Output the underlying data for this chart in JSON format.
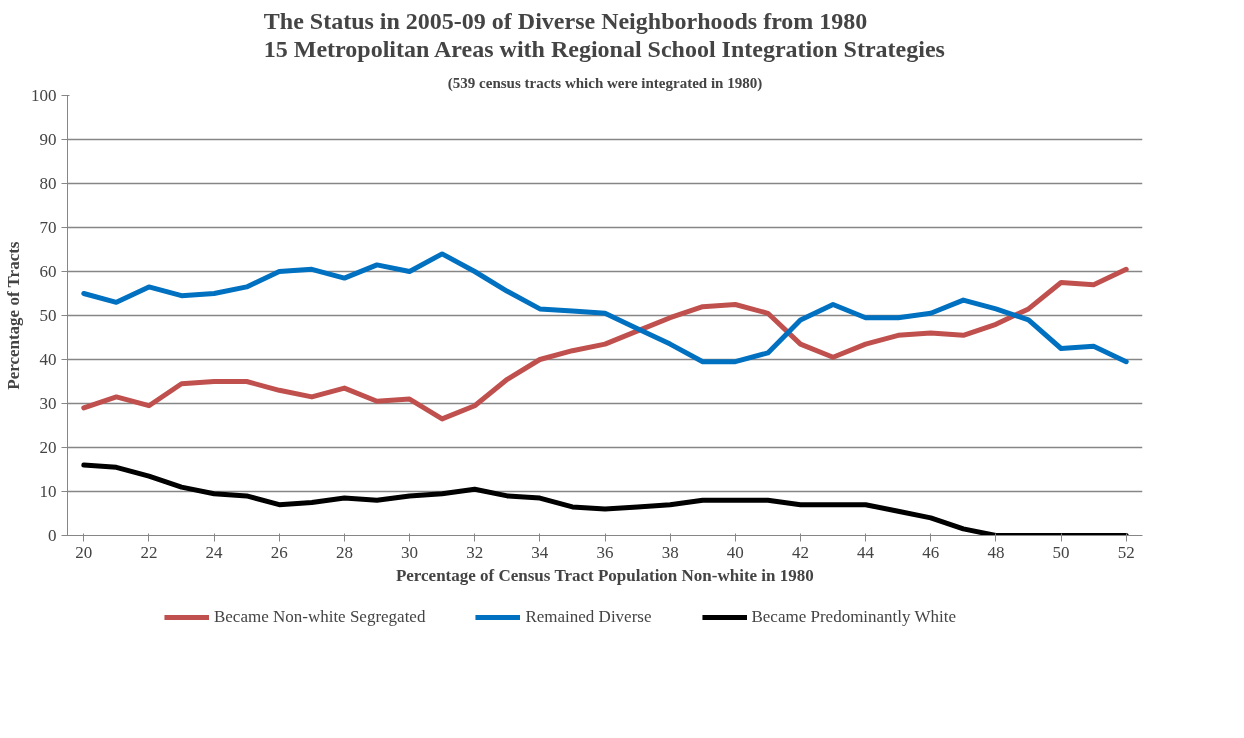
{
  "chart_data": {
    "type": "line",
    "title": "The Status in 2005-09 of Diverse Neighborhoods from 1980\n15 Metropolitan Areas with Regional School Integration Strategies",
    "subtitle": "(539 census tracts which were integrated in 1980)",
    "xlabel": "Percentage of Census Tract Population Non-white in 1980",
    "ylabel": "Percentage of Tracts",
    "x": [
      20,
      21,
      22,
      23,
      24,
      25,
      26,
      27,
      28,
      29,
      30,
      31,
      32,
      33,
      34,
      35,
      36,
      37,
      38,
      39,
      40,
      41,
      42,
      43,
      44,
      45,
      46,
      47,
      48,
      49,
      50,
      51,
      52
    ],
    "xlim": [
      19.5,
      52.5
    ],
    "xticks": [
      20,
      22,
      24,
      26,
      28,
      30,
      32,
      34,
      36,
      38,
      40,
      42,
      44,
      46,
      48,
      50,
      52
    ],
    "ylim": [
      0,
      100
    ],
    "yticks": [
      0,
      10,
      20,
      30,
      40,
      50,
      60,
      70,
      80,
      90,
      100
    ],
    "grid": "y",
    "legend": "bottom",
    "line_style": "solid",
    "marker": "none",
    "series": [
      {
        "name": "Became Non-white Segregated",
        "color": "#c0504d",
        "values": [
          29,
          31.5,
          29.5,
          34.5,
          35,
          35,
          33,
          31.5,
          33.5,
          30.5,
          31,
          26.5,
          29.5,
          35.5,
          40,
          42,
          43.5,
          46.5,
          49.5,
          52,
          52.5,
          50.5,
          43.5,
          40.5,
          43.5,
          45.5,
          46,
          45.5,
          48,
          51.5,
          57.5,
          57,
          60.5
        ]
      },
      {
        "name": "Remained Diverse",
        "color": "#0070c0",
        "values": [
          55,
          53,
          56.5,
          54.5,
          55,
          56.5,
          60,
          60.5,
          58.5,
          61.5,
          60,
          64,
          60,
          55.5,
          51.5,
          51,
          50.5,
          47,
          43.5,
          39.5,
          39.5,
          41.5,
          49,
          52.5,
          49.5,
          49.5,
          50.5,
          53.5,
          51.5,
          49,
          42.5,
          43,
          39.5
        ]
      },
      {
        "name": "Became Predominantly White",
        "color": "#000000",
        "values": [
          16,
          15.5,
          13.5,
          11,
          9.5,
          9,
          7,
          7.5,
          8.5,
          8,
          9,
          9.5,
          10.5,
          9,
          8.5,
          6.5,
          6,
          6.5,
          7,
          8,
          8,
          8,
          7,
          7,
          7,
          5.5,
          4,
          1.5,
          0,
          0,
          0,
          0,
          0
        ]
      }
    ]
  }
}
